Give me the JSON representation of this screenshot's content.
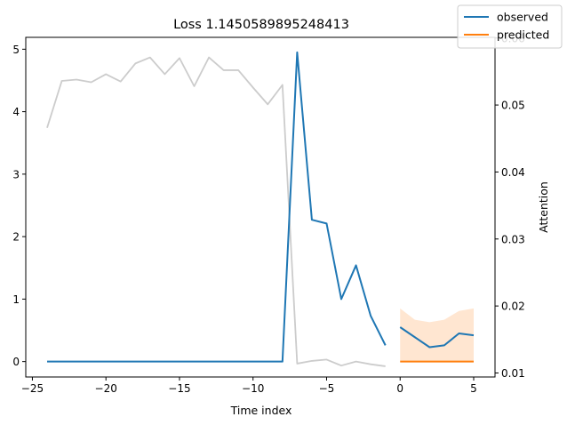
{
  "chart_data": {
    "type": "line",
    "title": "Loss 1.1450589895248413",
    "xlabel": "Time index",
    "ylabel": "",
    "y2label": "Attention",
    "xlim": [
      -25.45,
      6.45
    ],
    "ylim": [
      -0.247,
      5.19
    ],
    "y2lim": [
      0.0094,
      0.0601
    ],
    "xticks": [
      -25,
      -20,
      -15,
      -10,
      -5,
      0,
      5
    ],
    "yticks": [
      0,
      1,
      2,
      3,
      4,
      5
    ],
    "y2ticks": [
      0.01,
      0.02,
      0.03,
      0.04,
      0.05,
      0.06
    ],
    "y2tick_labels": [
      "0.01",
      "0.02",
      "0.03",
      "0.04",
      "0.05",
      "0.06"
    ],
    "legend_position": "top-right",
    "legend": [
      {
        "label": "observed",
        "color": "#1f77b4"
      },
      {
        "label": "predicted",
        "color": "#ff7f0e"
      }
    ],
    "series": [
      {
        "name": "observed",
        "color": "#1f77b4",
        "axis": "left",
        "segments": [
          {
            "x": [
              -24,
              -23,
              -22,
              -21,
              -20,
              -19,
              -18,
              -17,
              -16,
              -15,
              -14,
              -13,
              -12,
              -11,
              -10,
              -9,
              -8,
              -7,
              -6,
              -5,
              -4,
              -3,
              -2,
              -1
            ],
            "y": [
              0,
              0,
              0,
              0,
              0,
              0,
              0,
              0,
              0,
              0,
              0,
              0,
              0,
              0,
              0,
              0,
              0,
              4.95,
              2.27,
              2.21,
              1.0,
              1.54,
              0.73,
              0.26
            ]
          },
          {
            "x": [
              0,
              1,
              2,
              3,
              4,
              5
            ],
            "y": [
              0.55,
              0.39,
              0.23,
              0.26,
              0.45,
              0.42
            ]
          }
        ]
      },
      {
        "name": "predicted",
        "color": "#ff7f0e",
        "axis": "left",
        "x": [
          0,
          1,
          2,
          3,
          4,
          5
        ],
        "y": [
          0,
          0,
          0,
          0,
          0,
          0
        ]
      },
      {
        "name": "",
        "color": "#ffe6d1",
        "type": "band",
        "axis": "left",
        "x": [
          0,
          1,
          2,
          3,
          4,
          5
        ],
        "upper": [
          0.85,
          0.67,
          0.63,
          0.67,
          0.81,
          0.85
        ],
        "lower": [
          0,
          0,
          0,
          0,
          0,
          0
        ]
      },
      {
        "name": "",
        "color": "#cccccc",
        "axis": "right",
        "x": [
          -24,
          -23,
          -22,
          -21,
          -20,
          -19,
          -18,
          -17,
          -16,
          -15,
          -14,
          -13,
          -12,
          -11,
          -10,
          -9,
          -8,
          -7,
          -6,
          -5,
          -4,
          -3,
          -2,
          -1
        ],
        "y": [
          0.0466,
          0.0536,
          0.0538,
          0.0534,
          0.0546,
          0.0535,
          0.0562,
          0.0571,
          0.0546,
          0.057,
          0.0528,
          0.0571,
          0.0552,
          0.0552,
          0.0526,
          0.0501,
          0.053,
          0.0114,
          0.0118,
          0.012,
          0.0111,
          0.0117,
          0.0113,
          0.011
        ]
      }
    ]
  }
}
